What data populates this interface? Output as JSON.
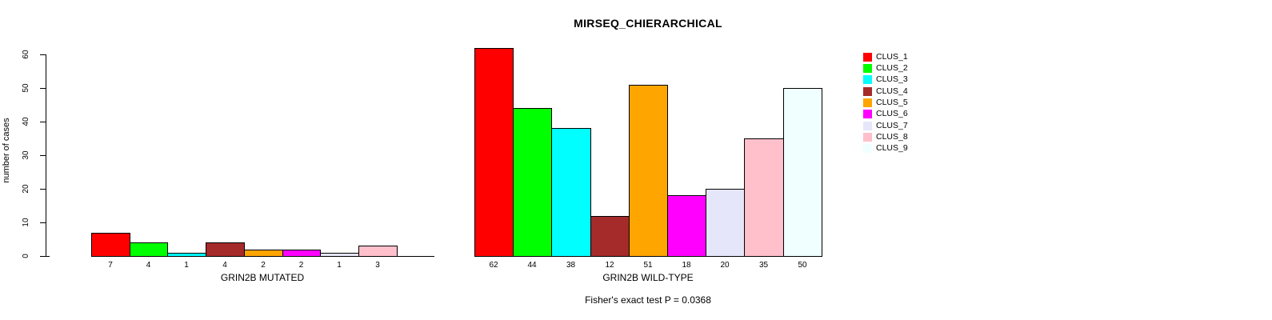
{
  "chart_data": {
    "type": "bar",
    "title": "MIRSEQ_CHIERARCHICAL",
    "ylabel": "number of cases",
    "ylim": [
      0,
      60
    ],
    "yticks": [
      0,
      10,
      20,
      30,
      40,
      50,
      60
    ],
    "grid": false,
    "legend_position": "right",
    "legend": [
      {
        "label": "CLUS_1",
        "color": "#FF0000"
      },
      {
        "label": "CLUS_2",
        "color": "#00FF00"
      },
      {
        "label": "CLUS_3",
        "color": "#00FFFF"
      },
      {
        "label": "CLUS_4",
        "color": "#A52A2A"
      },
      {
        "label": "CLUS_5",
        "color": "#FFA500"
      },
      {
        "label": "CLUS_6",
        "color": "#FF00FF"
      },
      {
        "label": "CLUS_7",
        "color": "#E6E6FA"
      },
      {
        "label": "CLUS_8",
        "color": "#FFC0CB"
      },
      {
        "label": "CLUS_9",
        "color": "#F0FFFF"
      }
    ],
    "panels": [
      {
        "xlabel": "GRIN2B MUTATED",
        "values": [
          7,
          4,
          1,
          4,
          2,
          2,
          1,
          3,
          0
        ]
      },
      {
        "xlabel": "GRIN2B WILD-TYPE",
        "values": [
          62,
          44,
          38,
          12,
          51,
          18,
          20,
          35,
          50
        ]
      }
    ],
    "footnote": "Fisher's exact test P = 0.0368",
    "text_color": "#000000",
    "background": "#FFFFFF"
  }
}
